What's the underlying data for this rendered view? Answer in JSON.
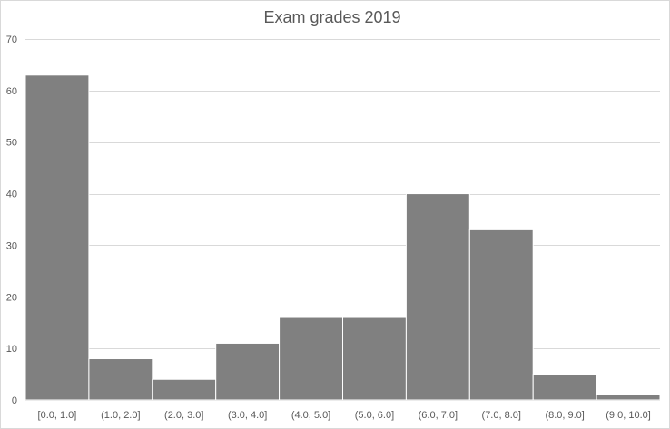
{
  "chart_data": {
    "type": "bar",
    "title": "Exam grades 2019",
    "xlabel": "",
    "ylabel": "",
    "categories": [
      "[0.0, 1.0]",
      "(1.0, 2.0]",
      "(2.0, 3.0]",
      "(3.0, 4.0]",
      "(4.0, 5.0]",
      "(5.0, 6.0]",
      "(6.0, 7.0]",
      "(7.0, 8.0]",
      "(8.0, 9.0]",
      "(9.0, 10.0]"
    ],
    "values": [
      63,
      8,
      4,
      11,
      16,
      16,
      40,
      33,
      5,
      1
    ],
    "ylim": [
      0,
      70
    ],
    "yticks": [
      0,
      10,
      20,
      30,
      40,
      50,
      60,
      70
    ],
    "grid": true,
    "legend": "none",
    "colors": {
      "bar_fill": "#808080",
      "bar_edge": "#ffffff",
      "gridline": "#d9d9d9",
      "text": "#595959"
    }
  }
}
